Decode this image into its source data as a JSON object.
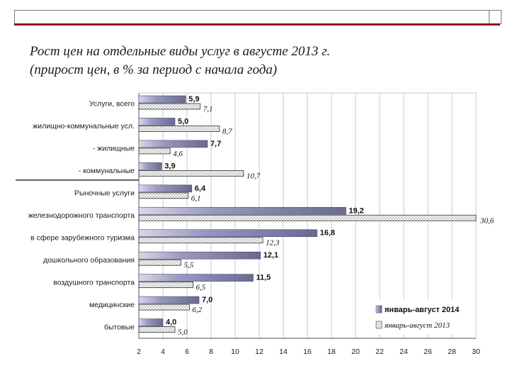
{
  "title": {
    "line1": "Рост цен на отдельные виды услуг в августе 2013 г.",
    "line2": "(прирост цен, в % за период с начала года)"
  },
  "colors": {
    "series2014": "#8e8eb6",
    "series2013": "#f4f4f4",
    "grid": "#c8c8c8",
    "accent_rule": "#8a1818"
  },
  "chart_data": {
    "type": "bar",
    "orientation": "horizontal",
    "categories": [
      "Услуги, всего",
      "жилищно-коммунальные усл.",
      "- жилищные",
      "- коммунальные",
      "Рыночные услуги",
      "железнодорожного транспорта",
      "в сфере зарубежного туризма",
      "дошкольного образования",
      "воздушного транспорта",
      "медицинские",
      "бытовые"
    ],
    "series": [
      {
        "name": "январь-август 2014",
        "values": [
          5.9,
          5.0,
          7.7,
          3.9,
          6.4,
          19.2,
          16.8,
          12.1,
          11.5,
          7.0,
          4.0
        ]
      },
      {
        "name": "январь-август 2013",
        "values": [
          7.1,
          8.7,
          4.6,
          10.7,
          6.1,
          30.6,
          12.3,
          5.5,
          6.5,
          6.2,
          5.0
        ]
      }
    ],
    "value_labels": {
      "series2014": [
        "5,9",
        "5,0",
        "7,7",
        "3,9",
        "6,4",
        "19,2",
        "16,8",
        "12,1",
        "11,5",
        "7,0",
        "4,0"
      ],
      "series2013": [
        "7,1",
        "8,7",
        "4,6",
        "10,7",
        "6,1",
        "30,6",
        "12,3",
        "5,5",
        "6,5",
        "6,2",
        "5,0"
      ]
    },
    "xticks": [
      2,
      4,
      6,
      8,
      10,
      12,
      14,
      16,
      18,
      20,
      22,
      24,
      26,
      28,
      30
    ],
    "xlim": [
      2,
      30
    ],
    "grid": true,
    "legend": "bottom-right"
  }
}
